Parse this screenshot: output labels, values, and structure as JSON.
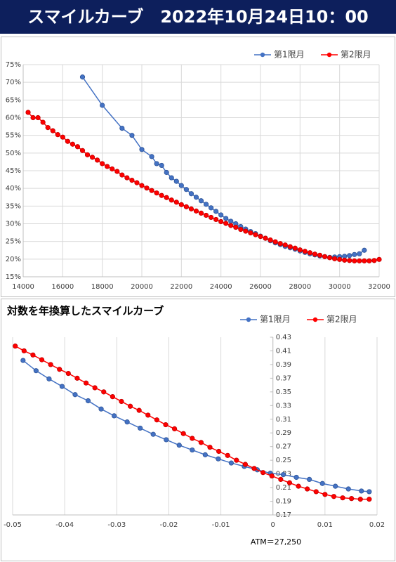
{
  "header": {
    "title": "スマイルカーブ　2022年10月24日10：00"
  },
  "chart_data": [
    {
      "type": "line",
      "xlim": [
        14000,
        32000
      ],
      "xticks": [
        14000,
        16000,
        18000,
        20000,
        22000,
        24000,
        26000,
        28000,
        30000,
        32000
      ],
      "ylim": [
        15,
        75
      ],
      "yticks": [
        {
          "value": 15,
          "label": "15%"
        },
        {
          "value": 20,
          "label": "20%"
        },
        {
          "value": 25,
          "label": "25%"
        },
        {
          "value": 30,
          "label": "30%"
        },
        {
          "value": 35,
          "label": "35%"
        },
        {
          "value": 40,
          "label": "40%"
        },
        {
          "value": 45,
          "label": "45%"
        },
        {
          "value": 50,
          "label": "50%"
        },
        {
          "value": 55,
          "label": "55%"
        },
        {
          "value": 60,
          "label": "60%"
        },
        {
          "value": 65,
          "label": "65%"
        },
        {
          "value": 70,
          "label": "70%"
        },
        {
          "value": 75,
          "label": "75%"
        }
      ],
      "grid_x": true,
      "grid_y": true,
      "legend": "top-right",
      "series": [
        {
          "name": "第1限月",
          "color": "#4472c4",
          "x": [
            17000,
            18000,
            19000,
            19500,
            20000,
            20500,
            20750,
            21000,
            21250,
            21500,
            21750,
            22000,
            22250,
            22500,
            22750,
            23000,
            23250,
            23500,
            23750,
            24000,
            24250,
            24500,
            24750,
            25000,
            25250,
            25500,
            25750,
            26000,
            26250,
            26500,
            26750,
            27000,
            27250,
            27500,
            27750,
            28000,
            28250,
            28500,
            28750,
            29000,
            29250,
            29500,
            29750,
            30000,
            30250,
            30500,
            30750,
            31000,
            31250
          ],
          "values": [
            71.5,
            63.5,
            57,
            55,
            51,
            49,
            47,
            46.5,
            44.5,
            43,
            42,
            40.8,
            39.7,
            38.5,
            37.5,
            36.5,
            35.5,
            34.5,
            33.5,
            32.5,
            31.5,
            30.7,
            30,
            29.2,
            28.5,
            27.8,
            27.2,
            26.5,
            25.9,
            25.2,
            24.6,
            24.1,
            23.6,
            23.2,
            22.8,
            22.3,
            21.9,
            21.5,
            21.2,
            20.9,
            20.7,
            20.5,
            20.6,
            20.7,
            20.8,
            21,
            21.3,
            21.5,
            22.5
          ]
        },
        {
          "name": "第2限月",
          "color": "#ff0000",
          "x": [
            14250,
            14500,
            14750,
            15000,
            15250,
            15500,
            15750,
            16000,
            16250,
            16500,
            16750,
            17000,
            17250,
            17500,
            17750,
            18000,
            18250,
            18500,
            18750,
            19000,
            19250,
            19500,
            19750,
            20000,
            20250,
            20500,
            20750,
            21000,
            21250,
            21500,
            21750,
            22000,
            22250,
            22500,
            22750,
            23000,
            23250,
            23500,
            23750,
            24000,
            24250,
            24500,
            24750,
            25000,
            25250,
            25500,
            25750,
            26000,
            26250,
            26500,
            26750,
            27000,
            27250,
            27500,
            27750,
            28000,
            28250,
            28500,
            28750,
            29000,
            29250,
            29500,
            29750,
            30000,
            30250,
            30500,
            30750,
            31000,
            31250,
            31500,
            31750,
            32000
          ],
          "values": [
            61.5,
            60,
            60,
            58.7,
            57.2,
            56.3,
            55.2,
            54.5,
            53.3,
            52.5,
            51.8,
            50.7,
            49.5,
            48.8,
            48,
            47,
            46.2,
            45.5,
            44.8,
            43.8,
            43,
            42.3,
            41.6,
            40.8,
            40.1,
            39.4,
            38.7,
            38,
            37.4,
            36.7,
            36.1,
            35.4,
            34.8,
            34.2,
            33.6,
            33,
            32.4,
            31.8,
            31.2,
            30.6,
            30.1,
            29.5,
            29,
            28.4,
            27.9,
            27.4,
            26.9,
            26.4,
            25.9,
            25.4,
            24.9,
            24.4,
            24,
            23.5,
            23.1,
            22.6,
            22.2,
            21.8,
            21.4,
            21.1,
            20.7,
            20.4,
            20.1,
            19.9,
            19.7,
            19.6,
            19.5,
            19.5,
            19.5,
            19.5,
            19.6,
            19.9
          ]
        }
      ]
    },
    {
      "type": "line",
      "title": "対数を年換算したスマイルカーブ",
      "annotation": "ATM＝27,250",
      "xlim": [
        -0.05,
        0.02
      ],
      "xticks": [
        -0.05,
        -0.04,
        -0.03,
        -0.02,
        -0.01,
        0,
        0.01,
        0.02
      ],
      "ylim": [
        0.17,
        0.43
      ],
      "yticks": [
        0.17,
        0.19,
        0.21,
        0.23,
        0.25,
        0.27,
        0.29,
        0.31,
        0.33,
        0.35,
        0.37,
        0.39,
        0.41,
        0.43
      ],
      "grid_x": true,
      "grid_y": false,
      "y_axis_at_zero": true,
      "legend": "top-right",
      "series": [
        {
          "name": "第1限月",
          "color": "#4472c4",
          "x": [
            -0.048,
            -0.0455,
            -0.043,
            -0.0405,
            -0.038,
            -0.0355,
            -0.033,
            -0.0305,
            -0.028,
            -0.0255,
            -0.023,
            -0.0205,
            -0.018,
            -0.0155,
            -0.013,
            -0.0105,
            -0.008,
            -0.0055,
            -0.003,
            -0.0005,
            0.002,
            0.0045,
            0.007,
            0.0095,
            0.012,
            0.0145,
            0.017,
            0.0185
          ],
          "values": [
            0.396,
            0.381,
            0.369,
            0.358,
            0.346,
            0.337,
            0.325,
            0.315,
            0.306,
            0.297,
            0.288,
            0.28,
            0.272,
            0.265,
            0.258,
            0.252,
            0.246,
            0.241,
            0.236,
            0.231,
            0.229,
            0.225,
            0.222,
            0.216,
            0.212,
            0.208,
            0.205,
            0.204
          ]
        },
        {
          "name": "第2限月",
          "color": "#ff0000",
          "x": [
            -0.0495,
            -0.0478,
            -0.0461,
            -0.0444,
            -0.0427,
            -0.041,
            -0.0393,
            -0.0376,
            -0.0359,
            -0.0342,
            -0.0325,
            -0.0308,
            -0.0291,
            -0.0274,
            -0.0257,
            -0.024,
            -0.0223,
            -0.0206,
            -0.0189,
            -0.0172,
            -0.0155,
            -0.0138,
            -0.0121,
            -0.0104,
            -0.0087,
            -0.007,
            -0.0053,
            -0.0036,
            -0.0019,
            -0.0002,
            0.0015,
            0.0032,
            0.0049,
            0.0066,
            0.0083,
            0.01,
            0.0117,
            0.0134,
            0.0151,
            0.0168,
            0.0185
          ],
          "values": [
            0.417,
            0.41,
            0.404,
            0.397,
            0.39,
            0.383,
            0.377,
            0.37,
            0.363,
            0.356,
            0.35,
            0.343,
            0.336,
            0.329,
            0.323,
            0.316,
            0.309,
            0.302,
            0.296,
            0.289,
            0.282,
            0.276,
            0.269,
            0.263,
            0.257,
            0.25,
            0.244,
            0.238,
            0.232,
            0.227,
            0.222,
            0.217,
            0.212,
            0.208,
            0.204,
            0.2,
            0.197,
            0.195,
            0.194,
            0.193,
            0.193
          ]
        }
      ]
    }
  ]
}
